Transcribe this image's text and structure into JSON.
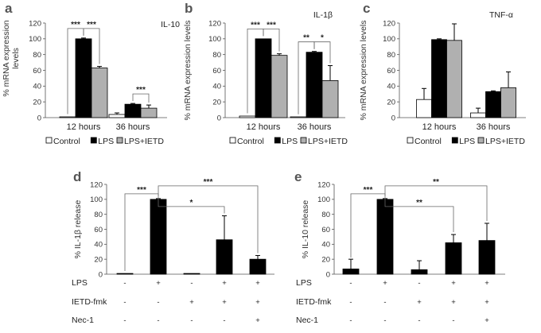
{
  "chart_data": [
    {
      "panel": "a",
      "type": "bar",
      "title": "IL-10",
      "ylabel": "% mRNA expression levels",
      "ylim": [
        0,
        120
      ],
      "yticks": [
        0,
        20,
        40,
        60,
        80,
        100,
        120
      ],
      "categories": [
        "12 hours",
        "36 hours"
      ],
      "series": [
        {
          "name": "Control",
          "color": "#ffffff",
          "values": [
            1,
            4
          ],
          "errors": [
            0.5,
            2
          ]
        },
        {
          "name": "LPS",
          "color": "#000000",
          "values": [
            100,
            17
          ],
          "errors": [
            1,
            1
          ]
        },
        {
          "name": "LPS+IETD",
          "color": "#b0b0b0",
          "values": [
            63,
            12
          ],
          "errors": [
            2,
            4
          ]
        }
      ],
      "significance": [
        {
          "label": "***",
          "cat": 0,
          "from": 0,
          "to": 1
        },
        {
          "label": "***",
          "cat": 0,
          "from": 1,
          "to": 2
        },
        {
          "label": "***",
          "cat": 1,
          "from": 1,
          "to": 2
        }
      ],
      "legend": [
        "Control",
        "LPS",
        "LPS+IETD"
      ]
    },
    {
      "panel": "b",
      "type": "bar",
      "title": "IL-1β",
      "ylabel": "% mRNA expression levels",
      "ylim": [
        0,
        120
      ],
      "yticks": [
        0,
        20,
        40,
        60,
        80,
        100,
        120
      ],
      "categories": [
        "12 hours",
        "36 hours"
      ],
      "series": [
        {
          "name": "Control",
          "color": "#ffffff",
          "values": [
            2,
            1
          ],
          "errors": [
            0.5,
            0.3
          ]
        },
        {
          "name": "LPS",
          "color": "#000000",
          "values": [
            100,
            83
          ],
          "errors": [
            0.5,
            1
          ]
        },
        {
          "name": "LPS+IETD",
          "color": "#b0b0b0",
          "values": [
            79,
            47
          ],
          "errors": [
            2,
            19
          ]
        }
      ],
      "significance": [
        {
          "label": "***",
          "cat": 0,
          "from": 0,
          "to": 1
        },
        {
          "label": "***",
          "cat": 0,
          "from": 1,
          "to": 2
        },
        {
          "label": "**",
          "cat": 1,
          "from": 0,
          "to": 1
        },
        {
          "label": "*",
          "cat": 1,
          "from": 1,
          "to": 2
        }
      ],
      "legend": [
        "Control",
        "LPS",
        "LPS+IETD"
      ]
    },
    {
      "panel": "c",
      "type": "bar",
      "title": "TNF-α",
      "ylabel": "% mRNA expression levels",
      "ylim": [
        0,
        120
      ],
      "yticks": [
        0,
        20,
        40,
        60,
        80,
        100,
        120
      ],
      "categories": [
        "12 hours",
        "36 hours"
      ],
      "series": [
        {
          "name": "Control",
          "color": "#ffffff",
          "values": [
            23,
            6
          ],
          "errors": [
            14,
            6
          ]
        },
        {
          "name": "LPS",
          "color": "#000000",
          "values": [
            99,
            33
          ],
          "errors": [
            1,
            1
          ]
        },
        {
          "name": "LPS+IETD",
          "color": "#b0b0b0",
          "values": [
            98,
            38
          ],
          "errors": [
            21,
            20
          ]
        }
      ],
      "significance": [],
      "legend": [
        "Control",
        "LPS",
        "LPS+IETD"
      ]
    },
    {
      "panel": "d",
      "type": "bar",
      "ylabel": "% IL-1β release",
      "ylim": [
        0,
        120
      ],
      "yticks": [
        0,
        20,
        40,
        60,
        80,
        100,
        120
      ],
      "values": [
        1,
        100,
        1,
        46,
        20
      ],
      "errors": [
        0,
        1,
        0,
        32,
        5
      ],
      "significance": [
        {
          "label": "***",
          "from": 0,
          "to": 1
        },
        {
          "label": "*",
          "from": 1,
          "to": 3
        },
        {
          "label": "***",
          "from": 1,
          "to": 4
        }
      ],
      "treatments": [
        {
          "label": "LPS",
          "marks": [
            "-",
            "+",
            "-",
            "+",
            "+"
          ]
        },
        {
          "label": "IETD-fmk",
          "marks": [
            "-",
            "-",
            "+",
            "+",
            "+"
          ]
        },
        {
          "label": "Nec-1",
          "marks": [
            "-",
            "-",
            "-",
            "-",
            "+"
          ]
        }
      ]
    },
    {
      "panel": "e",
      "type": "bar",
      "ylabel": "% IL-10 release",
      "ylim": [
        0,
        120
      ],
      "yticks": [
        0,
        20,
        40,
        60,
        80,
        100,
        120
      ],
      "values": [
        7,
        100,
        6,
        42,
        45
      ],
      "errors": [
        13,
        1,
        12,
        11,
        23
      ],
      "significance": [
        {
          "label": "***",
          "from": 0,
          "to": 1
        },
        {
          "label": "**",
          "from": 1,
          "to": 3
        },
        {
          "label": "**",
          "from": 1,
          "to": 4
        }
      ],
      "treatments": [
        {
          "label": "LPS",
          "marks": [
            "-",
            "+",
            "-",
            "+",
            "+"
          ]
        },
        {
          "label": "IETD-fmk",
          "marks": [
            "-",
            "-",
            "+",
            "+",
            "+"
          ]
        },
        {
          "label": "Nec-1",
          "marks": [
            "-",
            "-",
            "-",
            "-",
            "+"
          ]
        }
      ]
    }
  ]
}
